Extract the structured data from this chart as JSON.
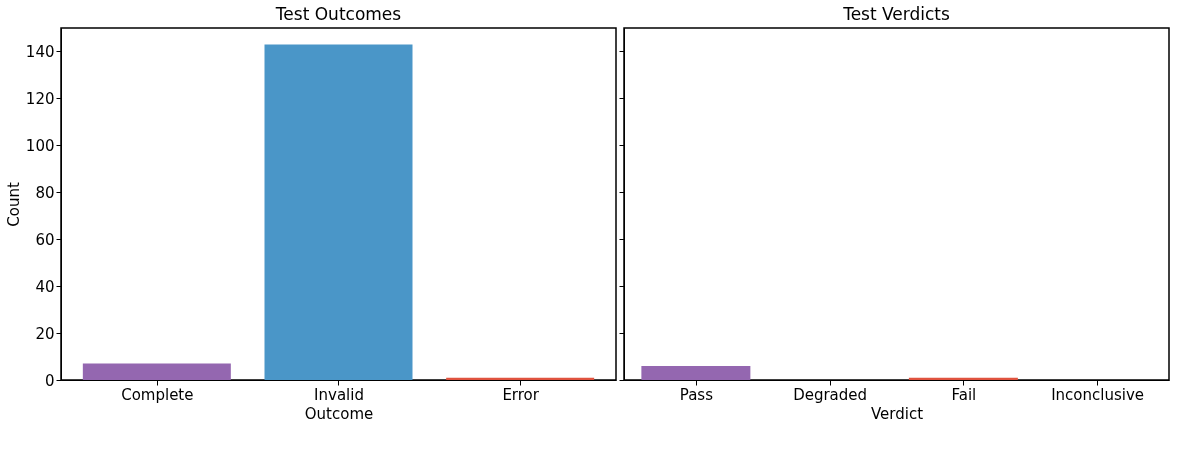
{
  "chart_data": [
    {
      "type": "bar",
      "title": "Test Outcomes",
      "xlabel": "Outcome",
      "ylabel": "Count",
      "categories": [
        "Complete",
        "Invalid",
        "Error"
      ],
      "values": [
        7,
        143,
        1
      ],
      "colors": [
        "#9467b0",
        "#4a96c8",
        "#e0533f"
      ],
      "ylim": [
        0,
        150
      ],
      "yticks": [
        0,
        20,
        40,
        60,
        80,
        100,
        120,
        140
      ],
      "grid": false
    },
    {
      "type": "bar",
      "title": "Test Verdicts",
      "xlabel": "Verdict",
      "categories": [
        "Pass",
        "Degraded",
        "Fail",
        "Inconclusive"
      ],
      "values": [
        6,
        0,
        1,
        0
      ],
      "colors": [
        "#9467b0",
        "#4a96c8",
        "#e0533f",
        "#9e9e9e"
      ],
      "ylim": [
        0,
        150
      ],
      "yticks": [
        0,
        20,
        40,
        60,
        80,
        100,
        120,
        140
      ],
      "tick_labels": "x",
      "grid": false
    }
  ]
}
